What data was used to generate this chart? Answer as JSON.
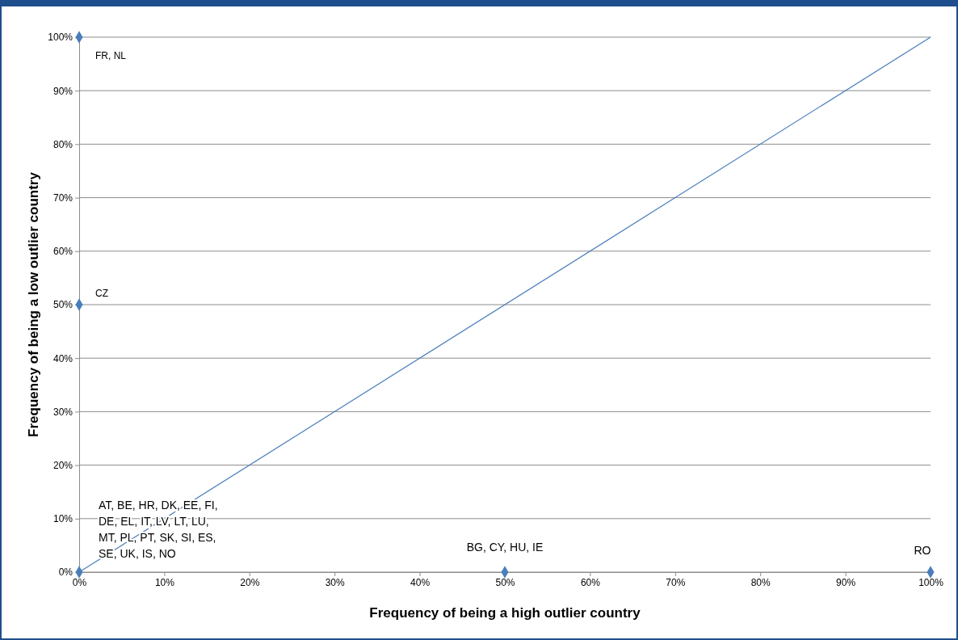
{
  "chart_data": {
    "type": "scatter",
    "xlabel": "Frequency of being a high outlier country",
    "ylabel": "Frequency of being a low outlier country",
    "xlim": [
      0,
      100
    ],
    "ylim": [
      0,
      100
    ],
    "xticks": [
      {
        "value": 0,
        "label": "0%"
      },
      {
        "value": 10,
        "label": "10%"
      },
      {
        "value": 20,
        "label": "20%"
      },
      {
        "value": 30,
        "label": "30%"
      },
      {
        "value": 40,
        "label": "40%"
      },
      {
        "value": 50,
        "label": "50%"
      },
      {
        "value": 60,
        "label": "60%"
      },
      {
        "value": 70,
        "label": "70%"
      },
      {
        "value": 80,
        "label": "80%"
      },
      {
        "value": 90,
        "label": "90%"
      },
      {
        "value": 100,
        "label": "100%"
      }
    ],
    "yticks": [
      {
        "value": 0,
        "label": "0%"
      },
      {
        "value": 10,
        "label": "10%"
      },
      {
        "value": 20,
        "label": "20%"
      },
      {
        "value": 30,
        "label": "30%"
      },
      {
        "value": 40,
        "label": "40%"
      },
      {
        "value": 50,
        "label": "50%"
      },
      {
        "value": 60,
        "label": "60%"
      },
      {
        "value": 70,
        "label": "70%"
      },
      {
        "value": 80,
        "label": "80%"
      },
      {
        "value": 90,
        "label": "90%"
      },
      {
        "value": 100,
        "label": "100%"
      }
    ],
    "grid": "y",
    "series": [
      {
        "color": "#4a7ebb",
        "marker": "diamond",
        "x": [
          0,
          0,
          0,
          50,
          100
        ],
        "values": [
          100,
          50,
          0,
          0,
          0
        ]
      },
      {
        "type": "line",
        "color": "#4a7ebb",
        "marker": "none",
        "x": [
          0,
          100
        ],
        "values": [
          0,
          100
        ]
      }
    ],
    "annotations": [
      {
        "text": "FR, NL",
        "x": 0,
        "y": 100
      },
      {
        "text": "CZ",
        "x": 0,
        "y": 50
      },
      {
        "text": "AT, BE, HR, DK, EE, FI, DE, EL, IT, LV, LT, LU, MT, PL, PT, SK, SI, ES, SE, UK, IS, NO",
        "x": 0,
        "y": 0
      },
      {
        "text": "BG, CY, HU, IE",
        "x": 50,
        "y": 0
      },
      {
        "text": "RO",
        "x": 100,
        "y": 0
      }
    ]
  }
}
